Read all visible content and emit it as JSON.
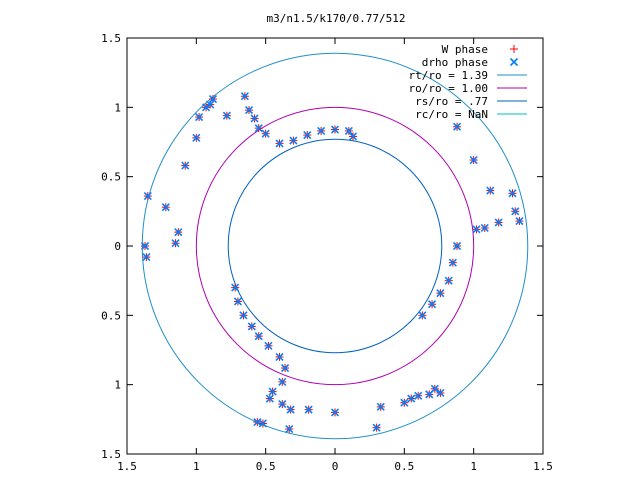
{
  "chart_data": {
    "type": "scatter",
    "title": "m3/n1.5/k170/0.77/512",
    "xlim": [
      -1.5,
      1.5
    ],
    "ylim": [
      -1.5,
      1.5
    ],
    "x_ticks": [
      {
        "value": -1.5,
        "label": "1.5"
      },
      {
        "value": -1.0,
        "label": "1"
      },
      {
        "value": -0.5,
        "label": "0.5"
      },
      {
        "value": 0.0,
        "label": "0"
      },
      {
        "value": 0.5,
        "label": "0.5"
      },
      {
        "value": 1.0,
        "label": "1"
      },
      {
        "value": 1.5,
        "label": "1.5"
      }
    ],
    "y_ticks": [
      {
        "value": 1.5,
        "label": "1.5"
      },
      {
        "value": 1.0,
        "label": "1"
      },
      {
        "value": 0.5,
        "label": "0.5"
      },
      {
        "value": 0.0,
        "label": "0"
      },
      {
        "value": -0.5,
        "label": "0.5"
      },
      {
        "value": -1.0,
        "label": "1"
      },
      {
        "value": -1.5,
        "label": "1.5"
      }
    ],
    "grid": false,
    "legend_position": "top-right",
    "legend": [
      {
        "label": "W phase",
        "kind": "marker",
        "marker": "plus",
        "color": "#ff0000"
      },
      {
        "label": "drho phase",
        "kind": "marker",
        "marker": "cross",
        "color": "#0080ff"
      },
      {
        "label": "rt/ro = 1.39",
        "kind": "line",
        "color": "#1f8fc8"
      },
      {
        "label": "ro/ro = 1.00",
        "kind": "line",
        "color": "#b000b0"
      },
      {
        "label": "rs/ro = .77",
        "kind": "line",
        "color": "#0060c0"
      },
      {
        "label": "rc/ro = NaN",
        "kind": "line",
        "color": "#00c0c0"
      }
    ],
    "circles": [
      {
        "label": "rt/ro = 1.39",
        "r": 1.39,
        "color": "#1f8fc8"
      },
      {
        "label": "ro/ro = 1.00",
        "r": 1.0,
        "color": "#b000b0"
      },
      {
        "label": "rs/ro = .77",
        "r": 0.77,
        "color": "#0060c0"
      }
    ],
    "series": [
      {
        "name": "W phase",
        "marker": "plus",
        "color": "#ff0000",
        "points": [
          [
            -1.35,
            0.36
          ],
          [
            -1.22,
            0.28
          ],
          [
            -1.08,
            0.58
          ],
          [
            -1.0,
            0.78
          ],
          [
            -0.98,
            0.93
          ],
          [
            -0.93,
            1.0
          ],
          [
            -0.9,
            1.02
          ],
          [
            -0.88,
            1.06
          ],
          [
            -0.78,
            0.94
          ],
          [
            -1.13,
            0.1
          ],
          [
            -1.15,
            0.02
          ],
          [
            -1.37,
            0.0
          ],
          [
            -1.36,
            -0.08
          ],
          [
            -0.65,
            1.08
          ],
          [
            -0.62,
            0.98
          ],
          [
            -0.58,
            0.92
          ],
          [
            -0.55,
            0.85
          ],
          [
            -0.5,
            0.81
          ],
          [
            -0.4,
            0.74
          ],
          [
            -0.3,
            0.76
          ],
          [
            -0.2,
            0.8
          ],
          [
            -0.1,
            0.83
          ],
          [
            0.0,
            0.84
          ],
          [
            0.1,
            0.83
          ],
          [
            0.13,
            0.79
          ],
          [
            0.88,
            0.86
          ],
          [
            1.0,
            0.62
          ],
          [
            1.12,
            0.4
          ],
          [
            1.28,
            0.38
          ],
          [
            1.3,
            0.25
          ],
          [
            1.33,
            0.18
          ],
          [
            1.02,
            0.12
          ],
          [
            1.08,
            0.13
          ],
          [
            1.18,
            0.17
          ],
          [
            0.88,
            0.0
          ],
          [
            0.85,
            -0.12
          ],
          [
            0.82,
            -0.25
          ],
          [
            0.76,
            -0.34
          ],
          [
            0.7,
            -0.42
          ],
          [
            0.63,
            -0.5
          ],
          [
            -0.72,
            -0.3
          ],
          [
            -0.7,
            -0.4
          ],
          [
            -0.66,
            -0.5
          ],
          [
            -0.6,
            -0.58
          ],
          [
            -0.55,
            -0.65
          ],
          [
            -0.48,
            -0.72
          ],
          [
            -0.4,
            -0.8
          ],
          [
            -0.36,
            -0.88
          ],
          [
            -0.38,
            -0.98
          ],
          [
            -0.45,
            -1.05
          ],
          [
            -0.47,
            -1.1
          ],
          [
            -0.38,
            -1.14
          ],
          [
            -0.32,
            -1.18
          ],
          [
            -0.19,
            -1.18
          ],
          [
            -0.33,
            -1.32
          ],
          [
            -0.52,
            -1.28
          ],
          [
            -0.56,
            -1.27
          ],
          [
            0.0,
            -1.2
          ],
          [
            0.3,
            -1.31
          ],
          [
            0.33,
            -1.16
          ],
          [
            0.5,
            -1.13
          ],
          [
            0.55,
            -1.1
          ],
          [
            0.6,
            -1.08
          ],
          [
            0.68,
            -1.07
          ],
          [
            0.76,
            -1.06
          ],
          [
            0.72,
            -1.03
          ]
        ]
      },
      {
        "name": "drho phase",
        "marker": "cross",
        "color": "#0080ff",
        "points": [
          [
            -1.35,
            0.36
          ],
          [
            -1.22,
            0.28
          ],
          [
            -1.08,
            0.58
          ],
          [
            -1.0,
            0.78
          ],
          [
            -0.98,
            0.93
          ],
          [
            -0.93,
            1.0
          ],
          [
            -0.9,
            1.02
          ],
          [
            -0.88,
            1.06
          ],
          [
            -0.78,
            0.94
          ],
          [
            -1.13,
            0.1
          ],
          [
            -1.15,
            0.02
          ],
          [
            -1.37,
            0.0
          ],
          [
            -1.36,
            -0.08
          ],
          [
            -0.65,
            1.08
          ],
          [
            -0.62,
            0.98
          ],
          [
            -0.58,
            0.92
          ],
          [
            -0.55,
            0.85
          ],
          [
            -0.5,
            0.81
          ],
          [
            -0.4,
            0.74
          ],
          [
            -0.3,
            0.76
          ],
          [
            -0.2,
            0.8
          ],
          [
            -0.1,
            0.83
          ],
          [
            0.0,
            0.84
          ],
          [
            0.1,
            0.83
          ],
          [
            0.13,
            0.79
          ],
          [
            0.88,
            0.86
          ],
          [
            1.0,
            0.62
          ],
          [
            1.12,
            0.4
          ],
          [
            1.28,
            0.38
          ],
          [
            1.3,
            0.25
          ],
          [
            1.33,
            0.18
          ],
          [
            1.02,
            0.12
          ],
          [
            1.08,
            0.13
          ],
          [
            1.18,
            0.17
          ],
          [
            0.88,
            0.0
          ],
          [
            0.85,
            -0.12
          ],
          [
            0.82,
            -0.25
          ],
          [
            0.76,
            -0.34
          ],
          [
            0.7,
            -0.42
          ],
          [
            0.63,
            -0.5
          ],
          [
            -0.72,
            -0.3
          ],
          [
            -0.7,
            -0.4
          ],
          [
            -0.66,
            -0.5
          ],
          [
            -0.6,
            -0.58
          ],
          [
            -0.55,
            -0.65
          ],
          [
            -0.48,
            -0.72
          ],
          [
            -0.4,
            -0.8
          ],
          [
            -0.36,
            -0.88
          ],
          [
            -0.38,
            -0.98
          ],
          [
            -0.45,
            -1.05
          ],
          [
            -0.47,
            -1.1
          ],
          [
            -0.38,
            -1.14
          ],
          [
            -0.32,
            -1.18
          ],
          [
            -0.19,
            -1.18
          ],
          [
            -0.33,
            -1.32
          ],
          [
            -0.52,
            -1.28
          ],
          [
            -0.56,
            -1.27
          ],
          [
            0.0,
            -1.2
          ],
          [
            0.3,
            -1.31
          ],
          [
            0.33,
            -1.16
          ],
          [
            0.5,
            -1.13
          ],
          [
            0.55,
            -1.1
          ],
          [
            0.6,
            -1.08
          ],
          [
            0.68,
            -1.07
          ],
          [
            0.76,
            -1.06
          ],
          [
            0.72,
            -1.03
          ]
        ]
      }
    ]
  }
}
